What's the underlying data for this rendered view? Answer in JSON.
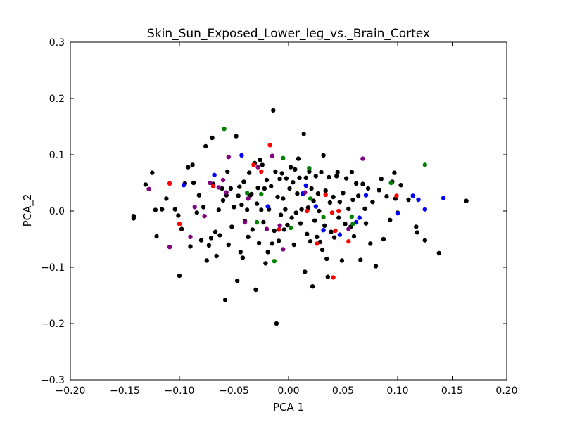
{
  "chart_data": {
    "type": "scatter",
    "title": "Skin_Sun_Exposed_Lower_leg_vs._Brain_Cortex",
    "xlabel": "PCA 1",
    "ylabel": "PCA_2",
    "xlim": [
      -0.2,
      0.2
    ],
    "ylim": [
      -0.3,
      0.3
    ],
    "x_ticks": [
      "−0.20",
      "−0.15",
      "−0.10",
      "−0.05",
      "0.00",
      "0.05",
      "0.10",
      "0.15",
      "0.20"
    ],
    "y_ticks": [
      "−0.3",
      "−0.2",
      "−0.1",
      "0.0",
      "0.1",
      "0.2",
      "0.3"
    ],
    "x_tick_values": [
      -0.2,
      -0.15,
      -0.1,
      -0.05,
      0.0,
      0.05,
      0.1,
      0.15,
      0.2
    ],
    "y_tick_values": [
      -0.3,
      -0.2,
      -0.1,
      0.0,
      0.1,
      0.2,
      0.3
    ],
    "grid": false,
    "legend": "none",
    "series": [
      {
        "color": "#000000",
        "points": [
          [
            -0.142,
            -0.009
          ],
          [
            -0.142,
            -0.013
          ],
          [
            -0.131,
            0.047
          ],
          [
            -0.125,
            0.068
          ],
          [
            -0.122,
            0.002
          ],
          [
            -0.121,
            -0.045
          ],
          [
            -0.116,
            0.003
          ],
          [
            -0.112,
            0.022
          ],
          [
            -0.104,
            0.003
          ],
          [
            -0.101,
            -0.008
          ],
          [
            -0.1,
            -0.115
          ],
          [
            -0.098,
            -0.032
          ],
          [
            -0.095,
            0.049
          ],
          [
            -0.092,
            0.078
          ],
          [
            -0.09,
            -0.063
          ],
          [
            -0.088,
            0.082
          ],
          [
            -0.087,
            0.05
          ],
          [
            -0.084,
            -0.003
          ],
          [
            -0.082,
            0.028
          ],
          [
            -0.08,
            -0.052
          ],
          [
            -0.078,
            0.007
          ],
          [
            -0.076,
            0.115
          ],
          [
            -0.075,
            -0.088
          ],
          [
            -0.073,
            -0.061
          ],
          [
            -0.071,
            -0.048
          ],
          [
            -0.07,
            0.13
          ],
          [
            -0.069,
            0.048
          ],
          [
            -0.067,
            -0.037
          ],
          [
            -0.066,
            -0.08
          ],
          [
            -0.064,
            0.002
          ],
          [
            -0.063,
            -0.043
          ],
          [
            -0.061,
            0.04
          ],
          [
            -0.06,
            0.019
          ],
          [
            -0.058,
            -0.158
          ],
          [
            -0.057,
            0.028
          ],
          [
            -0.056,
            0.07
          ],
          [
            -0.055,
            -0.06
          ],
          [
            -0.053,
            0.04
          ],
          [
            -0.052,
            -0.028
          ],
          [
            -0.05,
            0.007
          ],
          [
            -0.048,
            0.133
          ],
          [
            -0.047,
            -0.124
          ],
          [
            -0.046,
            0.027
          ],
          [
            -0.045,
            0.043
          ],
          [
            -0.044,
            -0.073
          ],
          [
            -0.043,
            0.011
          ],
          [
            -0.042,
            -0.083
          ],
          [
            -0.041,
            0.052
          ],
          [
            -0.04,
            -0.018
          ],
          [
            -0.038,
            0.002
          ],
          [
            -0.037,
            -0.046
          ],
          [
            -0.036,
            0.068
          ],
          [
            -0.035,
            0.028
          ],
          [
            -0.034,
            0.03
          ],
          [
            -0.033,
            -0.033
          ],
          [
            -0.031,
            0.085
          ],
          [
            -0.03,
            -0.14
          ],
          [
            -0.029,
            0.013
          ],
          [
            -0.028,
            0.041
          ],
          [
            -0.027,
            -0.057
          ],
          [
            -0.026,
            0.091
          ],
          [
            -0.025,
            0.002
          ],
          [
            -0.024,
            0.082
          ],
          [
            -0.023,
            -0.02
          ],
          [
            -0.022,
            0.04
          ],
          [
            -0.021,
            -0.093
          ],
          [
            -0.02,
            0.055
          ],
          [
            -0.019,
            -0.073
          ],
          [
            -0.018,
            0.003
          ],
          [
            -0.016,
            0.044
          ],
          [
            -0.015,
            -0.058
          ],
          [
            -0.014,
            0.179
          ],
          [
            -0.013,
            -0.035
          ],
          [
            -0.012,
            0.07
          ],
          [
            -0.011,
            -0.2
          ],
          [
            -0.01,
            0.025
          ],
          [
            -0.009,
            -0.053
          ],
          [
            -0.008,
            0.057
          ],
          [
            -0.007,
            -0.007
          ],
          [
            -0.006,
            0.067
          ],
          [
            -0.005,
            0.022
          ],
          [
            -0.004,
            -0.033
          ],
          [
            -0.003,
            0.003
          ],
          [
            -0.002,
            0.058
          ],
          [
            -0.001,
            -0.025
          ],
          [
            0.001,
            0.04
          ],
          [
            0.002,
            0.078
          ],
          [
            0.003,
            -0.012
          ],
          [
            0.004,
            0.051
          ],
          [
            0.005,
            -0.06
          ],
          [
            0.006,
            0.074
          ],
          [
            0.007,
            -0.003
          ],
          [
            0.008,
            0.031
          ],
          [
            0.009,
            0.093
          ],
          [
            0.01,
            0.059
          ],
          [
            0.011,
            -0.022
          ],
          [
            0.012,
            0.003
          ],
          [
            0.013,
            0.03
          ],
          [
            0.014,
            0.137
          ],
          [
            0.015,
            -0.108
          ],
          [
            0.016,
            0.059
          ],
          [
            0.017,
            -0.041
          ],
          [
            0.018,
            0.006
          ],
          [
            0.019,
            0.07
          ],
          [
            0.02,
            -0.054
          ],
          [
            0.021,
            0.04
          ],
          [
            0.022,
            -0.134
          ],
          [
            0.023,
            0.018
          ],
          [
            0.024,
            -0.017
          ],
          [
            0.025,
            0.062
          ],
          [
            0.026,
            -0.046
          ],
          [
            0.027,
            0.031
          ],
          [
            0.028,
            0.0
          ],
          [
            0.029,
            -0.055
          ],
          [
            0.03,
            0.069
          ],
          [
            0.031,
            -0.069
          ],
          [
            0.032,
            0.099
          ],
          [
            0.033,
            -0.026
          ],
          [
            0.034,
            0.036
          ],
          [
            0.035,
            -0.085
          ],
          [
            0.036,
            -0.117
          ],
          [
            0.037,
            0.06
          ],
          [
            0.038,
            0.015
          ],
          [
            0.039,
            -0.037
          ],
          [
            0.041,
            0.025
          ],
          [
            0.042,
            -0.047
          ],
          [
            0.044,
            0.062
          ],
          [
            0.045,
            0.069
          ],
          [
            0.046,
            -0.012
          ],
          [
            0.047,
            0.016
          ],
          [
            0.049,
            -0.088
          ],
          [
            0.05,
            0.032
          ],
          [
            0.052,
            -0.023
          ],
          [
            0.053,
            0.058
          ],
          [
            0.055,
            0.004
          ],
          [
            0.057,
            -0.028
          ],
          [
            0.058,
            0.069
          ],
          [
            0.059,
            0.02
          ],
          [
            0.06,
            -0.045
          ],
          [
            0.062,
            0.049
          ],
          [
            0.064,
            0.027
          ],
          [
            0.066,
            -0.087
          ],
          [
            0.068,
            0.048
          ],
          [
            0.07,
            0.004
          ],
          [
            0.071,
            -0.022
          ],
          [
            0.073,
            0.04
          ],
          [
            0.075,
            -0.058
          ],
          [
            0.077,
            0.016
          ],
          [
            0.08,
            -0.098
          ],
          [
            0.083,
            0.037
          ],
          [
            0.085,
            0.057
          ],
          [
            0.087,
            -0.05
          ],
          [
            0.09,
            0.026
          ],
          [
            0.093,
            -0.016
          ],
          [
            0.095,
            0.052
          ],
          [
            0.097,
            0.068
          ],
          [
            0.098,
            0.022
          ],
          [
            0.1,
            -0.003
          ],
          [
            0.103,
            0.046
          ],
          [
            0.11,
            0.02
          ],
          [
            0.117,
            -0.028
          ],
          [
            0.118,
            -0.038
          ],
          [
            0.125,
            -0.052
          ],
          [
            0.138,
            -0.075
          ],
          [
            0.163,
            0.018
          ]
        ]
      },
      {
        "color": "#ff0000",
        "points": [
          [
            -0.109,
            0.049
          ],
          [
            -0.1,
            -0.023
          ],
          [
            -0.069,
            0.044
          ],
          [
            -0.032,
            0.082
          ],
          [
            -0.025,
            0.07
          ],
          [
            -0.017,
            0.117
          ],
          [
            -0.009,
            -0.033
          ],
          [
            0.017,
            0.0
          ],
          [
            0.026,
            -0.058
          ],
          [
            0.034,
            0.029
          ],
          [
            0.04,
            -0.003
          ],
          [
            0.041,
            -0.118
          ],
          [
            0.043,
            -0.035
          ],
          [
            0.046,
            0.0
          ],
          [
            0.055,
            -0.054
          ],
          [
            0.099,
            0.027
          ]
        ]
      },
      {
        "color": "#0000ff",
        "points": [
          [
            -0.096,
            0.046
          ],
          [
            -0.068,
            0.064
          ],
          [
            -0.043,
            0.099
          ],
          [
            -0.019,
            0.008
          ],
          [
            0.013,
            0.031
          ],
          [
            0.016,
            0.045
          ],
          [
            0.025,
            0.008
          ],
          [
            0.032,
            -0.034
          ],
          [
            0.047,
            -0.042
          ],
          [
            0.062,
            -0.02
          ],
          [
            0.065,
            -0.012
          ],
          [
            0.071,
            0.028
          ],
          [
            0.1,
            -0.004
          ],
          [
            0.114,
            0.027
          ],
          [
            0.119,
            0.02
          ],
          [
            0.125,
            0.003
          ],
          [
            0.142,
            0.023
          ]
        ]
      },
      {
        "color": "#800080",
        "points": [
          [
            -0.128,
            0.039
          ],
          [
            -0.109,
            -0.064
          ],
          [
            -0.09,
            -0.046
          ],
          [
            -0.086,
            0.007
          ],
          [
            -0.077,
            -0.009
          ],
          [
            -0.072,
            0.05
          ],
          [
            -0.064,
            0.042
          ],
          [
            -0.06,
            0.055
          ],
          [
            -0.057,
            0.033
          ],
          [
            -0.055,
            0.096
          ],
          [
            -0.04,
            -0.02
          ],
          [
            -0.037,
            0.022
          ],
          [
            -0.028,
            0.078
          ],
          [
            -0.02,
            -0.032
          ],
          [
            -0.015,
            0.098
          ],
          [
            -0.008,
            -0.026
          ],
          [
            -0.005,
            -0.068
          ],
          [
            0.015,
            0.033
          ],
          [
            0.055,
            -0.032
          ],
          [
            0.068,
            0.093
          ]
        ]
      },
      {
        "color": "#008000",
        "points": [
          [
            -0.059,
            0.146
          ],
          [
            -0.038,
            0.032
          ],
          [
            -0.029,
            -0.02
          ],
          [
            -0.025,
            0.03
          ],
          [
            -0.013,
            -0.089
          ],
          [
            -0.005,
            0.094
          ],
          [
            0.002,
            -0.03
          ],
          [
            0.019,
            0.076
          ],
          [
            0.02,
            0.022
          ],
          [
            0.032,
            -0.011
          ],
          [
            0.058,
            -0.01
          ],
          [
            0.059,
            -0.023
          ],
          [
            0.094,
            0.05
          ],
          [
            0.125,
            0.082
          ]
        ]
      }
    ]
  }
}
